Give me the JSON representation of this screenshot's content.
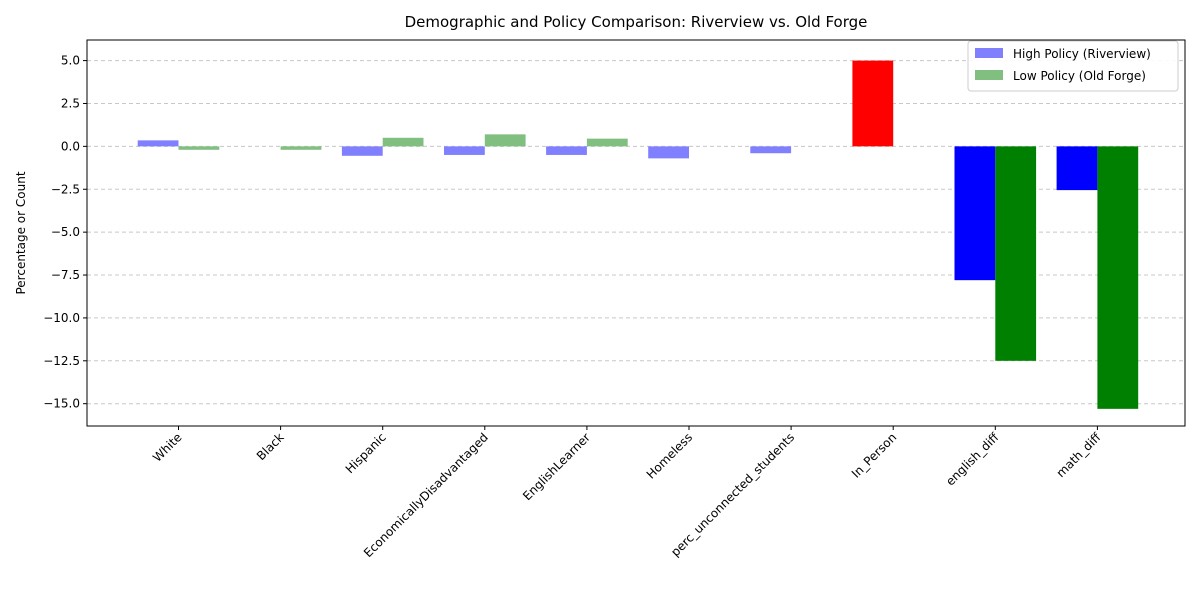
{
  "chart_data": {
    "type": "bar",
    "title": "Demographic and Policy Comparison: Riverview vs. Old Forge",
    "xlabel": "",
    "ylabel": "Percentage or Count",
    "categories": [
      "White",
      "Black",
      "Hispanic",
      "EconomicallyDisadvantaged",
      "EnglishLearner",
      "Homeless",
      "perc_unconnected_students",
      "In_Person",
      "english_diff",
      "math_diff"
    ],
    "series": [
      {
        "name": "High Policy (Riverview)",
        "legend_color": "#8080ff",
        "values": [
          0.35,
          0,
          -0.55,
          -0.5,
          -0.5,
          -0.7,
          -0.4,
          5.0,
          -7.8,
          -2.55
        ],
        "colors": [
          "#8080ff",
          "#8080ff",
          "#8080ff",
          "#8080ff",
          "#8080ff",
          "#8080ff",
          "#8080ff",
          "#ff0000",
          "#0000ff",
          "#0000ff"
        ]
      },
      {
        "name": "Low Policy (Old Forge)",
        "legend_color": "#80bf80",
        "values": [
          -0.2,
          -0.2,
          0.5,
          0.7,
          0.45,
          0,
          0,
          0,
          -12.5,
          -15.3
        ],
        "colors": [
          "#80bf80",
          "#80bf80",
          "#80bf80",
          "#80bf80",
          "#80bf80",
          "#80bf80",
          "#80bf80",
          "#80bf80",
          "#008000",
          "#008000"
        ]
      }
    ],
    "ylim": [
      -16.3,
      6.2
    ],
    "yticks": [
      5.0,
      2.5,
      0.0,
      -2.5,
      -5.0,
      -7.5,
      -10.0,
      -12.5,
      -15.0
    ],
    "ytick_labels": [
      "5.0",
      "2.5",
      "0.0",
      "−2.5",
      "−5.0",
      "−7.5",
      "−10.0",
      "−12.5",
      "−15.0"
    ],
    "grid": "y-dashed",
    "legend_position": "top-right"
  }
}
